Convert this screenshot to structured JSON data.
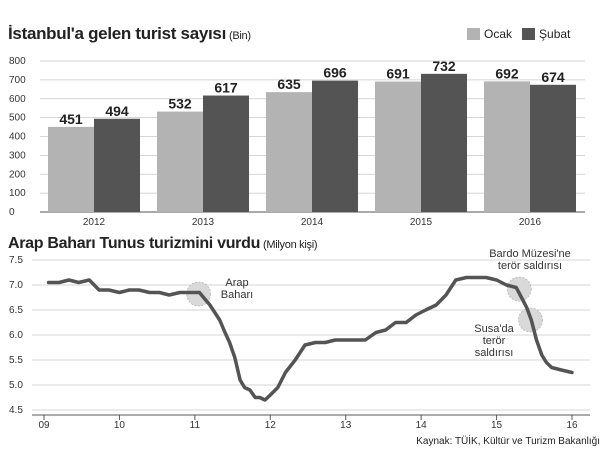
{
  "chart_data": [
    {
      "type": "bar",
      "title": "İstanbul'a gelen turist sayısı",
      "subtitle": "(Bin)",
      "categories": [
        "2012",
        "2013",
        "2014",
        "2015",
        "2016"
      ],
      "series": [
        {
          "name": "Ocak",
          "values": [
            451,
            532,
            635,
            691,
            692
          ],
          "color": "#b3b3b3"
        },
        {
          "name": "Şubat",
          "values": [
            494,
            617,
            696,
            732,
            674
          ],
          "color": "#545454"
        }
      ],
      "yticks": [
        "800",
        "700",
        "600",
        "500",
        "400",
        "300",
        "200",
        "100",
        "0"
      ],
      "ylim": [
        0,
        800
      ],
      "grid": true,
      "legend": "top-right"
    },
    {
      "type": "line",
      "title": "Arap Baharı Tunus turizmini vurdu",
      "subtitle": "(Milyon kişi)",
      "xticks": [
        "09",
        "10",
        "11",
        "12",
        "13",
        "14",
        "15",
        "16"
      ],
      "yticks": [
        "7.5",
        "7.0",
        "6.5",
        "6.0",
        "5.5",
        "5.0",
        "4.5"
      ],
      "xlim": [
        2009,
        2016
      ],
      "ylim": [
        4.5,
        7.5
      ],
      "series": [
        {
          "color": "#545454",
          "x": [
            2009.06,
            2009.2,
            2009.33,
            2009.46,
            2009.6,
            2009.73,
            2009.86,
            2010.0,
            2010.13,
            2010.26,
            2010.4,
            2010.53,
            2010.66,
            2010.8,
            2010.93,
            2011.06,
            2011.2,
            2011.33,
            2011.4,
            2011.46,
            2011.53,
            2011.6,
            2011.66,
            2011.73,
            2011.8,
            2011.86,
            2011.93,
            2012.0,
            2012.1,
            2012.2,
            2012.33,
            2012.46,
            2012.6,
            2012.73,
            2012.86,
            2013.0,
            2013.13,
            2013.26,
            2013.4,
            2013.53,
            2013.66,
            2013.8,
            2013.93,
            2014.06,
            2014.2,
            2014.33,
            2014.46,
            2014.6,
            2014.73,
            2014.8,
            2014.86,
            2015.0,
            2015.13,
            2015.26,
            2015.33,
            2015.4,
            2015.46,
            2015.53,
            2015.6,
            2015.66,
            2015.73,
            2015.86,
            2016.0
          ],
          "y": [
            7.05,
            7.05,
            7.1,
            7.05,
            7.1,
            6.9,
            6.9,
            6.85,
            6.9,
            6.9,
            6.85,
            6.85,
            6.8,
            6.85,
            6.85,
            6.85,
            6.6,
            6.3,
            6.05,
            5.85,
            5.55,
            5.1,
            4.95,
            4.9,
            4.75,
            4.75,
            4.7,
            4.8,
            4.95,
            5.25,
            5.5,
            5.8,
            5.85,
            5.85,
            5.9,
            5.9,
            5.9,
            5.9,
            6.05,
            6.1,
            6.25,
            6.25,
            6.4,
            6.5,
            6.6,
            6.8,
            7.1,
            7.15,
            7.15,
            7.15,
            7.15,
            7.1,
            7.0,
            6.95,
            6.75,
            6.55,
            6.3,
            5.9,
            5.6,
            5.45,
            5.35,
            5.3,
            5.25
          ]
        }
      ],
      "annotations": [
        {
          "lines": [
            "Arap",
            "Baharı"
          ],
          "x": 2011.05,
          "y": 6.82
        },
        {
          "lines": [
            "Bardo Müzesi'ne",
            "terör saldırısı"
          ],
          "x": 2015.3,
          "y": 6.92
        },
        {
          "lines": [
            "Susa'da",
            "terör",
            "saldırısı"
          ],
          "x": 2015.45,
          "y": 6.3
        }
      ]
    }
  ],
  "source": "Kaynak: TÜİK, Kültür ve Turizm Bakanlığı"
}
